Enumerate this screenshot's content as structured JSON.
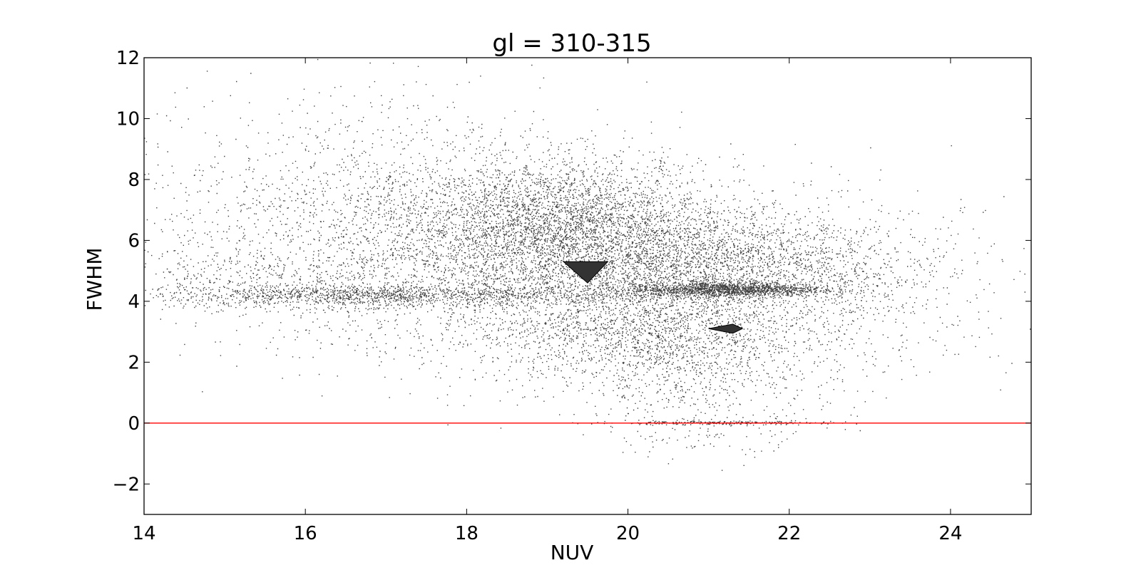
{
  "chart_data": {
    "type": "scatter",
    "title": "gl = 310-315",
    "xlabel": "NUV",
    "ylabel": "FWHM",
    "xlim": [
      14,
      25
    ],
    "ylim": [
      -3,
      12
    ],
    "xticks": [
      14,
      16,
      18,
      20,
      22,
      24
    ],
    "yticks": [
      -2,
      0,
      2,
      4,
      6,
      8,
      10,
      12
    ],
    "xtick_labels": [
      "14",
      "16",
      "18",
      "20",
      "22",
      "24"
    ],
    "ytick_labels": [
      "−2",
      "0",
      "2",
      "4",
      "6",
      "8",
      "10",
      "12"
    ],
    "grid": false,
    "marker_color": "#000000",
    "reference_line": {
      "y": 0,
      "color": "#ff0000"
    },
    "clusters": [
      {
        "x_mean": 16.8,
        "x_sd": 1.5,
        "y_mean": 4.2,
        "y_sd": 0.18,
        "count": 1400
      },
      {
        "x_mean": 21.2,
        "x_sd": 0.6,
        "y_mean": 4.4,
        "y_sd": 0.12,
        "count": 1500
      },
      {
        "x_mean": 19.2,
        "x_sd": 0.9,
        "y_mean": 6.6,
        "y_sd": 1.0,
        "count": 2600
      },
      {
        "x_mean": 20.9,
        "x_sd": 1.1,
        "y_mean": 5.2,
        "y_sd": 0.9,
        "count": 2600
      },
      {
        "x_mean": 18.3,
        "x_sd": 1.6,
        "y_mean": 5.6,
        "y_sd": 1.7,
        "count": 3200
      },
      {
        "x_mean": 16.3,
        "x_sd": 1.3,
        "y_mean": 7.0,
        "y_sd": 2.0,
        "count": 900
      },
      {
        "x_mean": 20.2,
        "x_sd": 1.0,
        "y_mean": 3.0,
        "y_sd": 0.9,
        "count": 1700
      },
      {
        "x_mean": 21.0,
        "x_sd": 0.8,
        "y_mean": 1.4,
        "y_sd": 1.0,
        "count": 500
      },
      {
        "x_mean": 21.0,
        "x_sd": 0.7,
        "y_mean": 0.02,
        "y_sd": 0.03,
        "count": 250
      },
      {
        "x_mean": 20.8,
        "x_sd": 0.6,
        "y_mean": -0.6,
        "y_sd": 0.3,
        "count": 40
      },
      {
        "x_mean": 22.8,
        "x_sd": 1.0,
        "y_mean": 4.5,
        "y_sd": 1.4,
        "count": 600
      },
      {
        "x_mean": 15.0,
        "x_sd": 0.6,
        "y_mean": 4.8,
        "y_sd": 0.5,
        "count": 200
      }
    ],
    "dense_markers": [
      {
        "points": [
          [
            19.2,
            5.3
          ],
          [
            19.75,
            5.3
          ],
          [
            19.5,
            4.6
          ]
        ]
      },
      {
        "points": [
          [
            21.0,
            3.1
          ],
          [
            21.3,
            3.25
          ],
          [
            21.42,
            3.1
          ],
          [
            21.3,
            2.95
          ]
        ]
      }
    ]
  }
}
